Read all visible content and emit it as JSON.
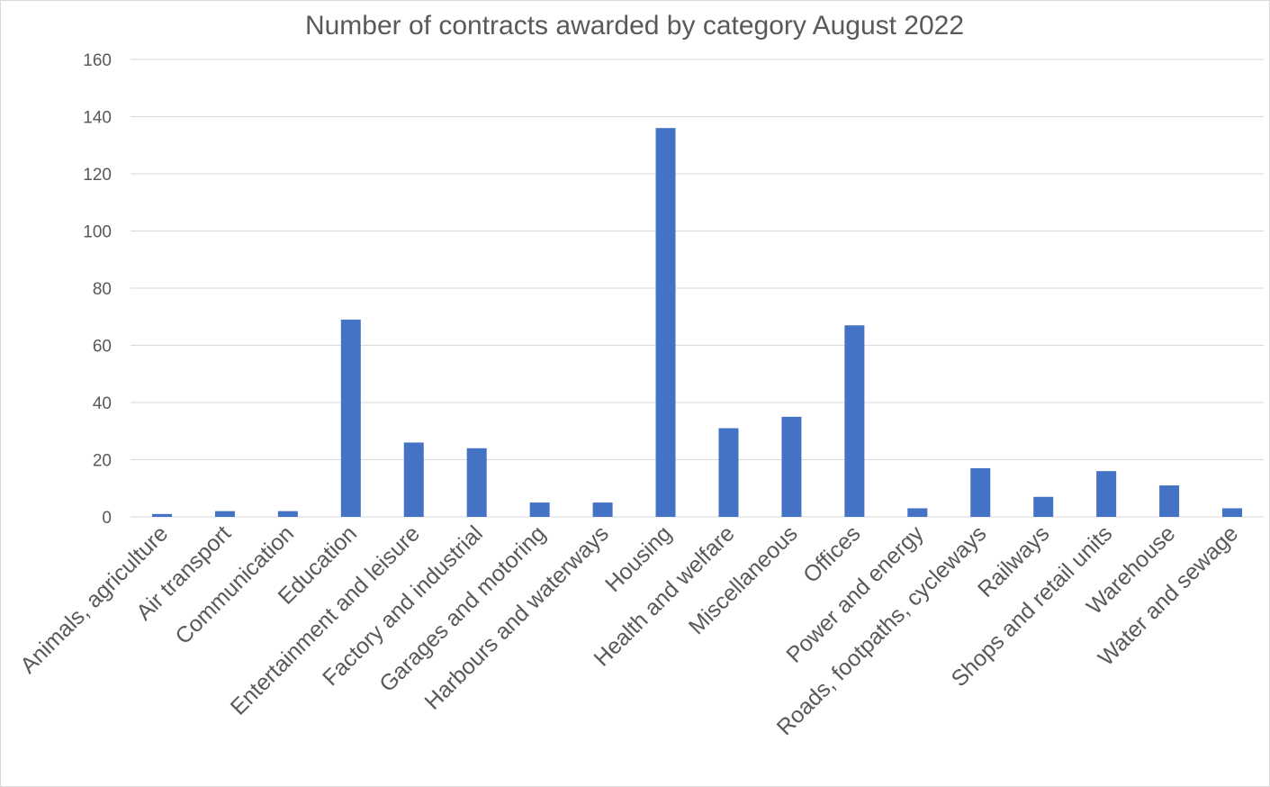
{
  "chart_data": {
    "type": "bar",
    "title": "Number of contracts awarded by category August 2022",
    "xlabel": "",
    "ylabel": "",
    "ylim": [
      0,
      160
    ],
    "yticks": [
      0,
      20,
      40,
      60,
      80,
      100,
      120,
      140,
      160
    ],
    "grid": true,
    "legend": "none",
    "bar_color": "#4472c4",
    "categories": [
      "Animals, agriculture",
      "Air transport",
      "Communication",
      "Education",
      "Entertainment and leisure",
      "Factory and industrial",
      "Garages and motoring",
      "Harbours and waterways",
      "Housing",
      "Health and welfare",
      "Miscellaneous",
      "Offices",
      "Power and energy",
      "Roads, footpaths, cycleways",
      "Railways",
      "Shops and retail units",
      "Warehouse",
      "Water and sewage"
    ],
    "values": [
      1,
      2,
      2,
      69,
      26,
      24,
      5,
      5,
      136,
      31,
      35,
      67,
      3,
      17,
      7,
      16,
      11,
      3
    ]
  }
}
